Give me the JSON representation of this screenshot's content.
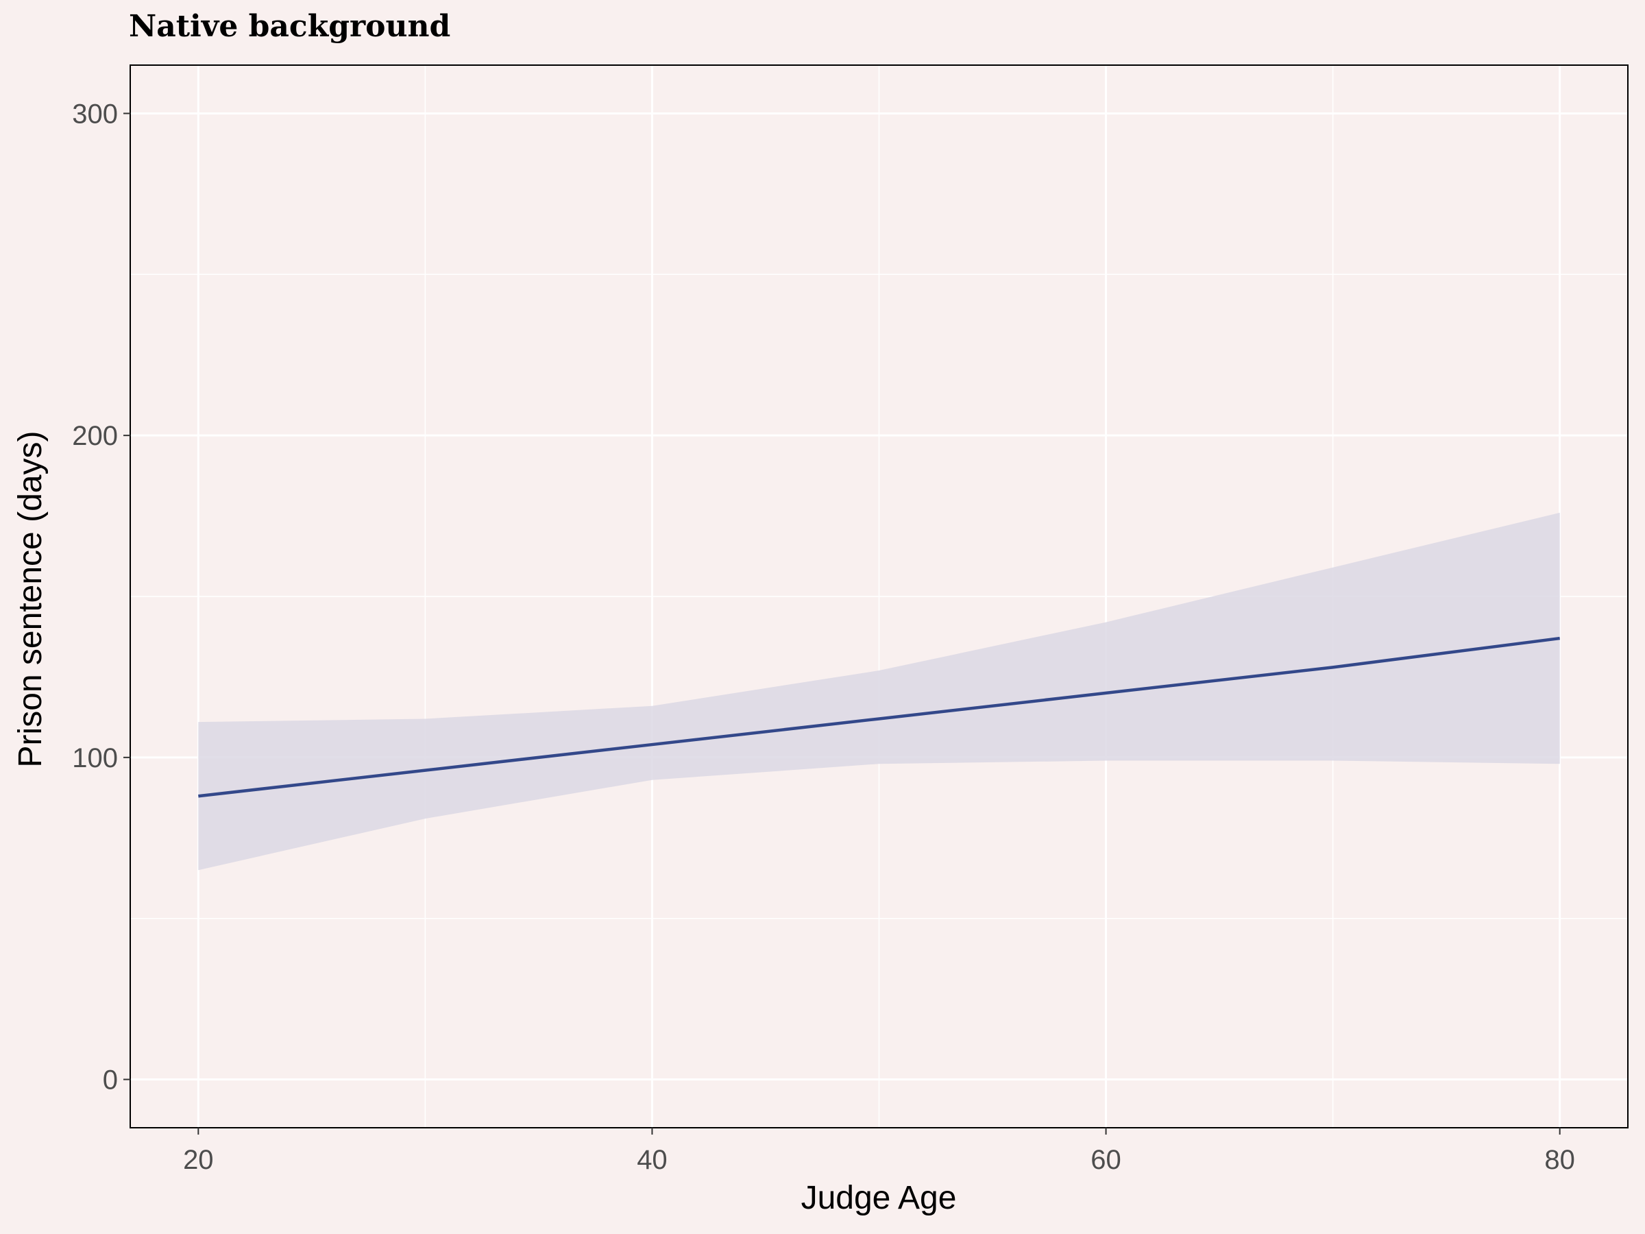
{
  "chart_data": {
    "type": "line",
    "title": "Native background",
    "xlabel": "Judge Age",
    "ylabel": "Prison sentence (days)",
    "xlim": [
      17,
      83
    ],
    "ylim": [
      -15,
      315
    ],
    "x_ticks": [
      20,
      40,
      60,
      80
    ],
    "y_ticks": [
      0,
      100,
      200,
      300
    ],
    "grid": true,
    "series": [
      {
        "x": [
          20,
          30,
          40,
          50,
          60,
          70,
          80
        ],
        "values": [
          88,
          96,
          104,
          112,
          120,
          128,
          137
        ],
        "lower": [
          65,
          81,
          93,
          98,
          99,
          99,
          98
        ],
        "upper": [
          111,
          112,
          116,
          127,
          142,
          159,
          176
        ]
      }
    ],
    "colors": {
      "background": "#f9f0ef",
      "line": "#33488a",
      "band": "#dcd8e4",
      "grid": "#ffffff",
      "panel_border": "#000000"
    }
  }
}
